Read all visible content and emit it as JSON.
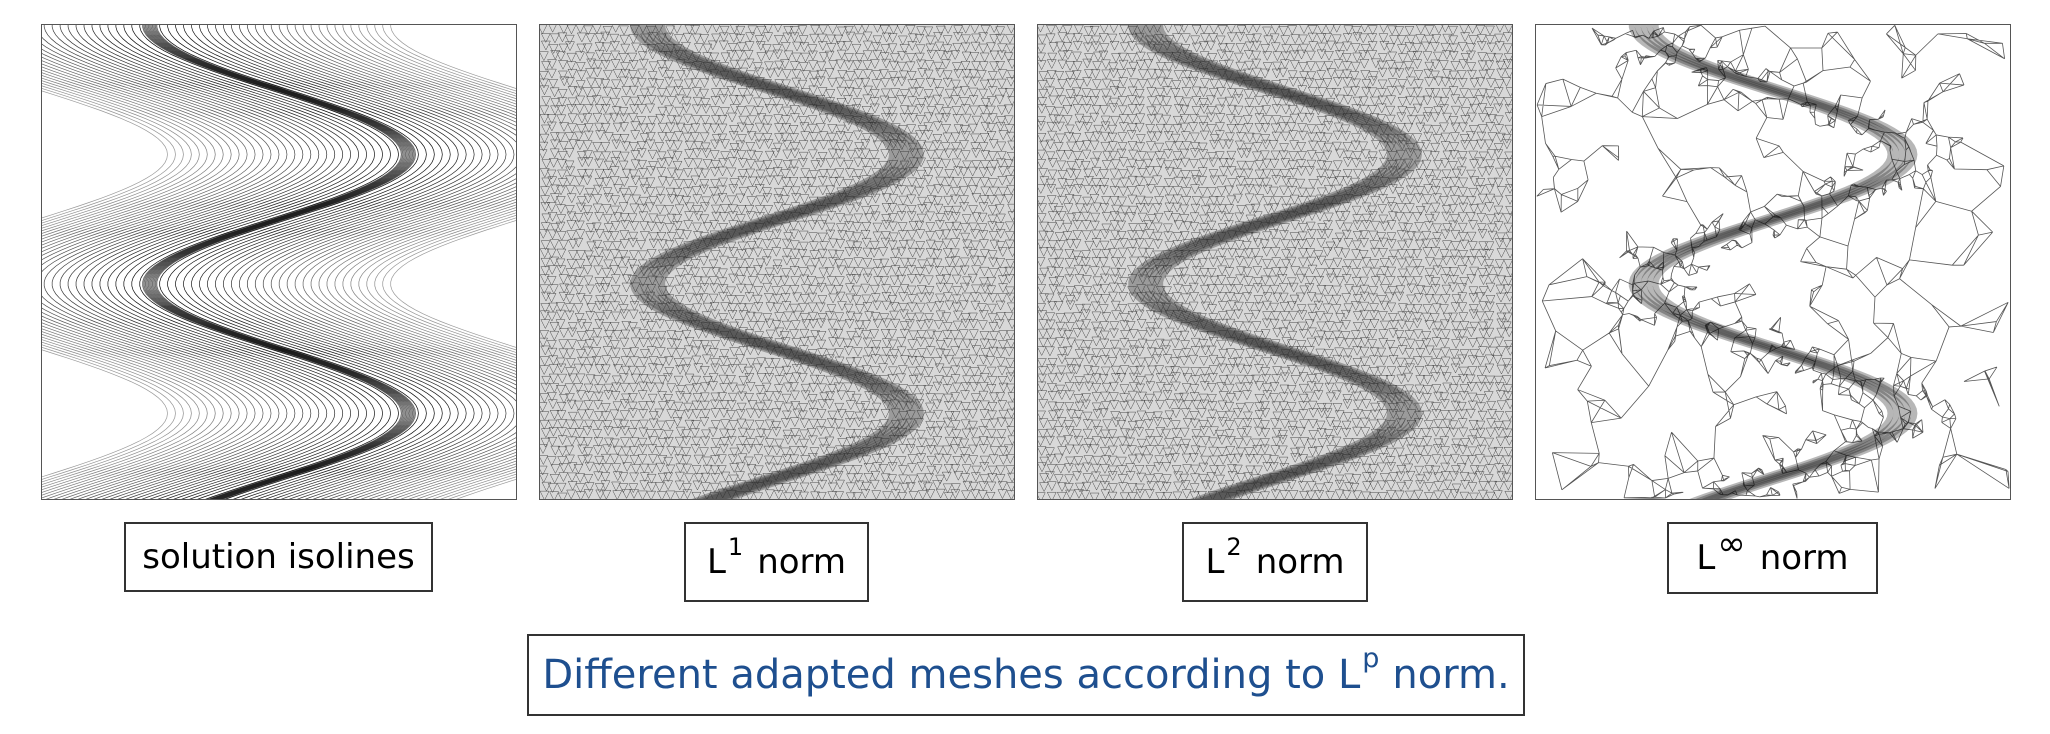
{
  "panels": [
    {
      "id": "isolines",
      "label": "solution isolines"
    },
    {
      "id": "l1",
      "label_base": "L",
      "label_sup": "1",
      "label_rest": "norm"
    },
    {
      "id": "l2",
      "label_base": "L",
      "label_sup": "2",
      "label_rest": "norm"
    },
    {
      "id": "linf",
      "label_base": "L",
      "label_sup": "∞",
      "label_rest": "norm"
    }
  ],
  "caption": {
    "text": "Different adapted meshes according to L",
    "sup": "p",
    "rest": "norm."
  },
  "colors": {
    "caption_text": "#1e4f8f",
    "border": "#333333",
    "mesh": "#555555"
  },
  "icons": [
    "isoline-plot",
    "adapted-mesh"
  ]
}
